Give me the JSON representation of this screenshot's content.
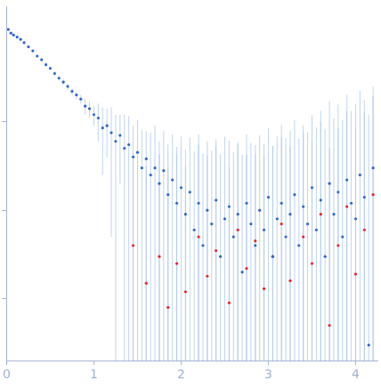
{
  "chart_data": {
    "type": "scatter",
    "xlim": [
      0,
      4.25
    ],
    "xticks": [
      0,
      1,
      2,
      3,
      4
    ],
    "ylim": [
      0.0002,
      2
    ],
    "yticks": [
      0.001,
      0.01,
      0.1
    ],
    "log": "y",
    "grid": false,
    "tick_labels": "x",
    "series": [
      {
        "color": "#2f66c9",
        "marker": "circle",
        "x": [
          0.02,
          0.05,
          0.08,
          0.12,
          0.16,
          0.2,
          0.25,
          0.3,
          0.35,
          0.4,
          0.45,
          0.5,
          0.55,
          0.6,
          0.65,
          0.7,
          0.75,
          0.8,
          0.85,
          0.9,
          0.95,
          1.0,
          1.05,
          1.1,
          1.15,
          1.2,
          1.25,
          1.3,
          1.35,
          1.4,
          1.45,
          1.5,
          1.55,
          1.6,
          1.65,
          1.7,
          1.75,
          1.8,
          1.85,
          1.9,
          1.95,
          2.0,
          2.05,
          2.1,
          2.15,
          2.2,
          2.25,
          2.3,
          2.35,
          2.4,
          2.45,
          2.5,
          2.55,
          2.6,
          2.65,
          2.7,
          2.75,
          2.8,
          2.85,
          2.9,
          2.95,
          3.0,
          3.05,
          3.1,
          3.15,
          3.2,
          3.25,
          3.3,
          3.35,
          3.4,
          3.45,
          3.5,
          3.55,
          3.6,
          3.65,
          3.7,
          3.75,
          3.8,
          3.85,
          3.9,
          3.95,
          4.0,
          4.05,
          4.1,
          4.15,
          4.2
        ],
        "values": [
          1.1,
          1.0,
          0.95,
          0.9,
          0.85,
          0.78,
          0.7,
          0.63,
          0.55,
          0.5,
          0.44,
          0.4,
          0.35,
          0.31,
          0.28,
          0.25,
          0.22,
          0.2,
          0.18,
          0.15,
          0.14,
          0.12,
          0.11,
          0.085,
          0.09,
          0.075,
          0.06,
          0.07,
          0.05,
          0.055,
          0.04,
          0.045,
          0.03,
          0.038,
          0.025,
          0.03,
          0.02,
          0.028,
          0.015,
          0.022,
          0.012,
          0.018,
          0.009,
          0.016,
          0.006,
          0.012,
          0.004,
          0.01,
          0.007,
          0.013,
          0.003,
          0.008,
          0.011,
          0.005,
          0.009,
          0.002,
          0.012,
          0.007,
          0.004,
          0.01,
          0.006,
          0.014,
          0.003,
          0.008,
          0.012,
          0.005,
          0.009,
          0.015,
          0.004,
          0.011,
          0.007,
          0.018,
          0.006,
          0.013,
          0.003,
          0.02,
          0.009,
          0.016,
          0.005,
          0.022,
          0.012,
          0.008,
          0.025,
          0.014,
          0.0003,
          0.03
        ],
        "errors": [
          0.02,
          0.02,
          0.02,
          0.02,
          0.02,
          0.02,
          0.02,
          0.02,
          0.02,
          0.02,
          0.02,
          0.02,
          0.02,
          0.02,
          0.02,
          0.02,
          0.02,
          0.02,
          0.02,
          0.03,
          0.03,
          0.03,
          0.05,
          0.06,
          0.05,
          0.07,
          0.06,
          0.05,
          0.07,
          0.06,
          0.05,
          0.06,
          0.05,
          0.04,
          0.05,
          0.06,
          0.04,
          0.05,
          0.04,
          0.05,
          0.04,
          0.05,
          0.04,
          0.05,
          0.04,
          0.06,
          0.04,
          0.05,
          0.04,
          0.05,
          0.04,
          0.06,
          0.05,
          0.04,
          0.05,
          0.04,
          0.06,
          0.05,
          0.04,
          0.06,
          0.05,
          0.07,
          0.05,
          0.06,
          0.08,
          0.06,
          0.07,
          0.09,
          0.06,
          0.08,
          0.07,
          0.1,
          0.08,
          0.12,
          0.08,
          0.15,
          0.1,
          0.14,
          0.1,
          0.18,
          0.12,
          0.15,
          0.2,
          0.16,
          0.12,
          0.22
        ]
      },
      {
        "color": "#e3262b",
        "marker": "circle",
        "x": [
          1.45,
          1.6,
          1.75,
          1.85,
          1.95,
          2.05,
          2.2,
          2.3,
          2.4,
          2.55,
          2.65,
          2.75,
          2.85,
          2.95,
          3.05,
          3.15,
          3.25,
          3.4,
          3.5,
          3.6,
          3.7,
          3.8,
          3.9,
          4.0,
          4.1,
          4.2
        ],
        "values": [
          0.004,
          0.0015,
          0.003,
          0.0008,
          0.0025,
          0.0012,
          0.005,
          0.0018,
          0.0035,
          0.0009,
          0.006,
          0.0022,
          0.0045,
          0.0013,
          0.003,
          0.007,
          0.0016,
          0.005,
          0.0025,
          0.009,
          0.0005,
          0.004,
          0.011,
          0.0019,
          0.006,
          0.015
        ],
        "errors": [
          0.04,
          0.03,
          0.04,
          0.03,
          0.04,
          0.03,
          0.05,
          0.04,
          0.05,
          0.03,
          0.05,
          0.04,
          0.05,
          0.04,
          0.05,
          0.06,
          0.05,
          0.07,
          0.06,
          0.09,
          0.05,
          0.08,
          0.12,
          0.08,
          0.12,
          0.18
        ]
      }
    ]
  }
}
